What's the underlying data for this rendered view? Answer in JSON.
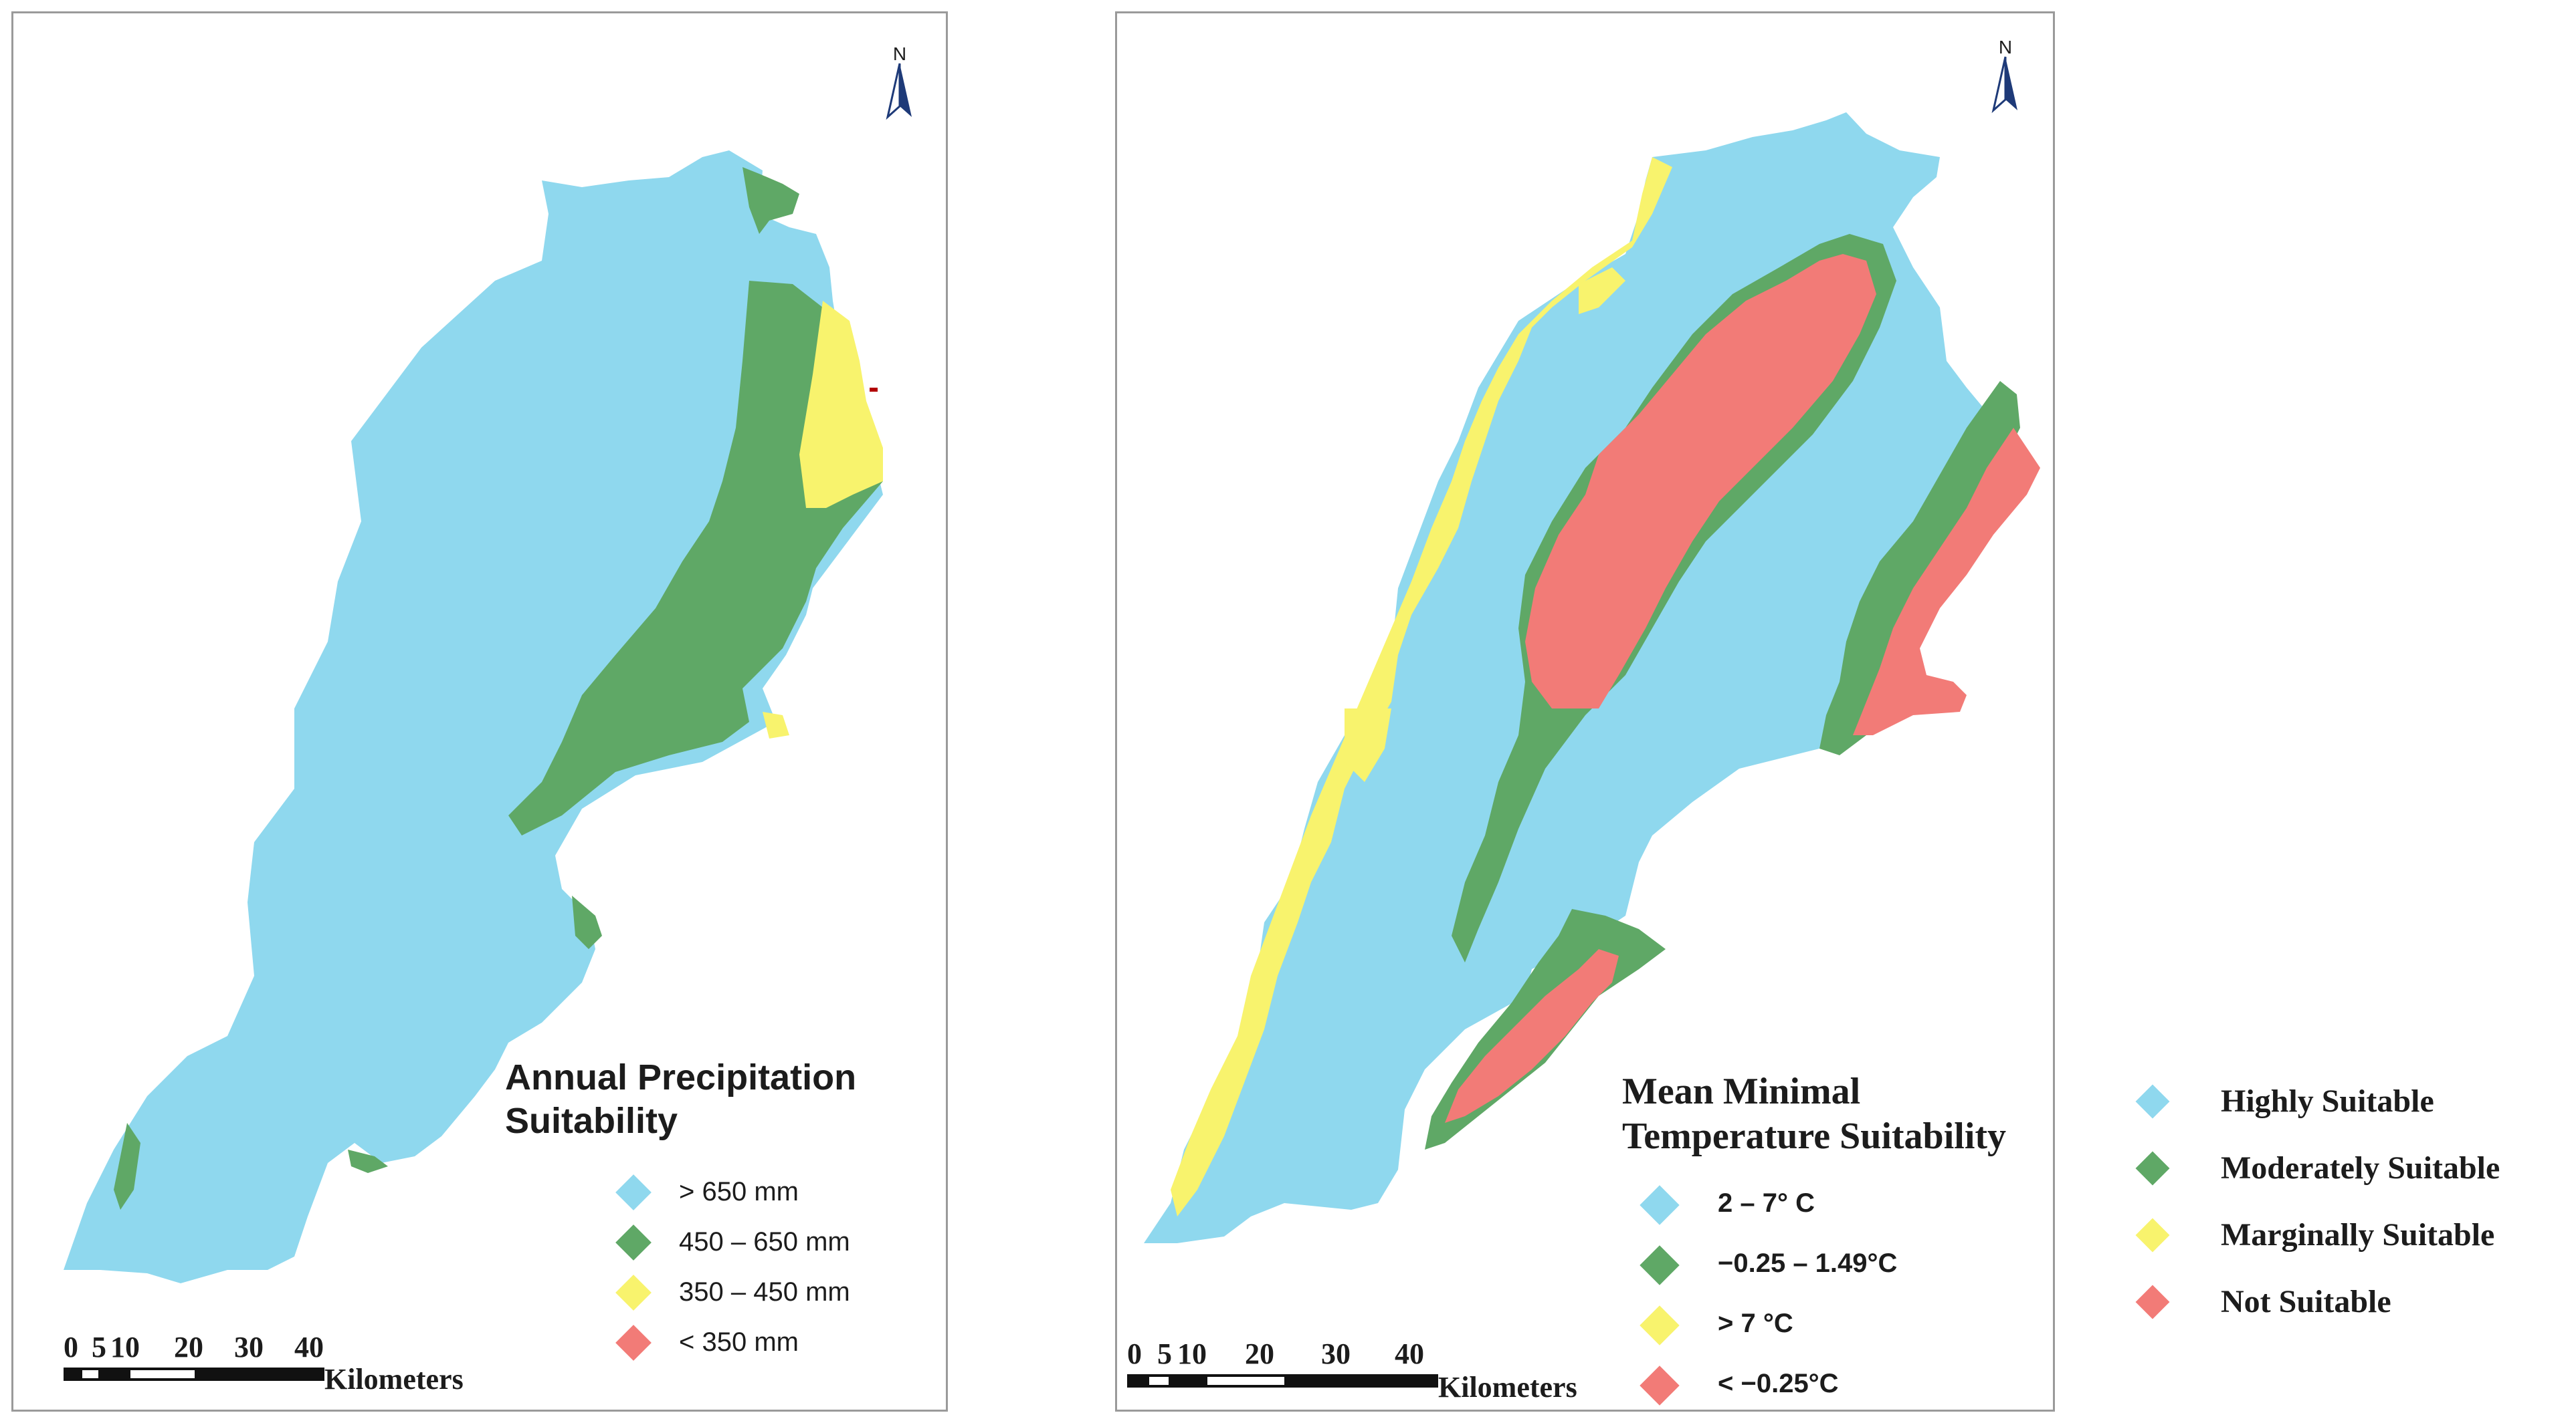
{
  "colors": {
    "highly": "#8fd8ee",
    "moderately": "#5fa866",
    "marginally": "#f8f36d",
    "not": "#f27b77"
  },
  "left_map": {
    "north_label": "N",
    "title_line1": "Annual Precipitation",
    "title_line2": "Suitability",
    "legend": [
      {
        "label": "> 650 mm",
        "color": "#8fd8ee"
      },
      {
        "label": "450 – 650 mm",
        "color": "#5fa866"
      },
      {
        "label": "350 – 450 mm",
        "color": "#f8f36d"
      },
      {
        "label": "< 350 mm",
        "color": "#f27b77"
      }
    ],
    "scale_ticks": [
      "0",
      "5",
      "10",
      "20",
      "30",
      "40"
    ],
    "scale_unit": "Kilometers"
  },
  "right_map": {
    "north_label": "N",
    "title_line1": "Mean Minimal",
    "title_line2": "Temperature Suitability",
    "legend": [
      {
        "label": "2 – 7° C",
        "color": "#8fd8ee"
      },
      {
        "label": "−0.25 – 1.49°C",
        "color": "#5fa866"
      },
      {
        "label": "> 7 °C",
        "color": "#f8f36d"
      },
      {
        "label": "< −0.25°C",
        "color": "#f27b77"
      }
    ],
    "scale_ticks": [
      "0",
      "5",
      "10",
      "20",
      "30",
      "40"
    ],
    "scale_unit": "Kilometers"
  },
  "suitability_legend": [
    {
      "label": "Highly Suitable",
      "color": "#8fd8ee"
    },
    {
      "label": "Moderately Suitable",
      "color": "#5fa866"
    },
    {
      "label": "Marginally Suitable",
      "color": "#f8f36d"
    },
    {
      "label": "Not Suitable",
      "color": "#f27b77"
    }
  ]
}
